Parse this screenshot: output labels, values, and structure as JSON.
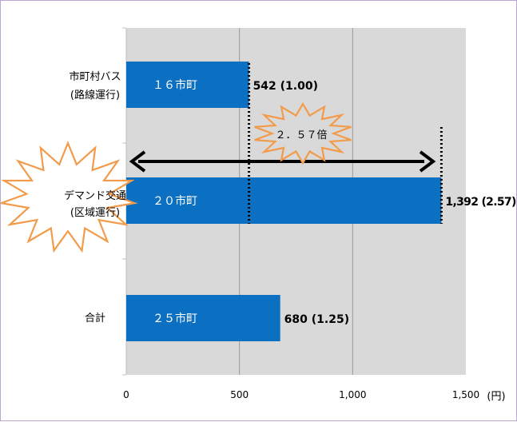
{
  "chart_data": {
    "type": "bar",
    "orientation": "horizontal",
    "categories": [
      {
        "line1": "市町村バス",
        "line2": "(路線運行)"
      },
      {
        "line1": "デマンド交通",
        "line2": "(区域運行)"
      },
      {
        "line1": "合計",
        "line2": ""
      }
    ],
    "inner_labels": [
      "１６市町",
      "２０市町",
      "２５市町"
    ],
    "values": [
      542,
      1392,
      680
    ],
    "ratios": [
      "1.00",
      "2.57",
      "1.25"
    ],
    "value_labels": [
      "542 (1.00)",
      "1,392 (2.57)",
      "680 (1.25)"
    ],
    "xlim": [
      0,
      1500
    ],
    "x_ticks": [
      0,
      500,
      1000,
      1500
    ],
    "x_tick_labels": [
      "0",
      "500",
      "1,000",
      "1,500"
    ],
    "x_unit": "(円)",
    "grid": true,
    "annotation": {
      "text": "２．５７倍",
      "from": 542,
      "to": 1392
    },
    "colors": {
      "bar": "#0b6fc2",
      "plot_bg": "#d9d9d9",
      "burst_stroke": "#f29b4b",
      "arrow": "#000000",
      "bar_text": "#ffffff",
      "value_text": "#000000",
      "axis_text": "#000000"
    },
    "highlighted_category_index": 1
  }
}
